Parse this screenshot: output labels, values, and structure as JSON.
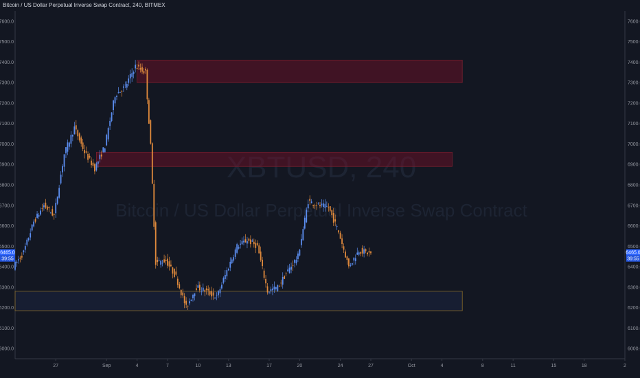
{
  "header": {
    "title": "Bitcoin / US Dollar Perpetual Inverse Swap Contract, 240, BITMEX"
  },
  "watermark": {
    "symbol": "XBTUSD, 240",
    "description": "Bitcoin / US Dollar Perpetual Inverse Swap Contract"
  },
  "chart_data": {
    "type": "candlestick",
    "symbol": "XBTUSD",
    "interval": "240",
    "exchange": "BITMEX",
    "y_ticks": [
      6000,
      6100,
      6200,
      6300,
      6400,
      6500,
      6600,
      6700,
      6800,
      6900,
      7000,
      7100,
      7200,
      7300,
      7400,
      7500,
      7600
    ],
    "y_tick_labels": [
      "6000.0",
      "6100.0",
      "6200.0",
      "6300.0",
      "6400.0",
      "6500.0",
      "6600.0",
      "6700.0",
      "6800.0",
      "6900.0",
      "7000.0",
      "7100.0",
      "7200.0",
      "7300.0",
      "7400.0",
      "7500.0",
      "7600.0"
    ],
    "ylim": [
      5950,
      7650
    ],
    "x_ticks": [
      {
        "label": "27",
        "date": "2018-08-27"
      },
      {
        "label": "Sep",
        "date": "2018-09-01"
      },
      {
        "label": "4",
        "date": "2018-09-04"
      },
      {
        "label": "7",
        "date": "2018-09-07"
      },
      {
        "label": "10",
        "date": "2018-09-10"
      },
      {
        "label": "13",
        "date": "2018-09-13"
      },
      {
        "label": "17",
        "date": "2018-09-17"
      },
      {
        "label": "20",
        "date": "2018-09-20"
      },
      {
        "label": "24",
        "date": "2018-09-24"
      },
      {
        "label": "27",
        "date": "2018-09-27"
      },
      {
        "label": "Oct",
        "date": "2018-10-01"
      },
      {
        "label": "4",
        "date": "2018-10-04"
      },
      {
        "label": "8",
        "date": "2018-10-08"
      },
      {
        "label": "11",
        "date": "2018-10-11"
      },
      {
        "label": "15",
        "date": "2018-10-15"
      },
      {
        "label": "18",
        "date": "2018-10-18"
      },
      {
        "label": "2",
        "date": "2018-10-22"
      }
    ],
    "xlim": [
      "2018-08-23",
      "2018-10-22"
    ],
    "last_price": "6465.0",
    "price_badge_top": "6465.0",
    "price_badge_bottom": "39:55",
    "zones": [
      {
        "name": "resistance-zone-upper",
        "start": "2018-09-04",
        "end": "2018-10-06",
        "low": 7300,
        "high": 7410,
        "kind": "resistance"
      },
      {
        "name": "resistance-zone-lower",
        "start": "2018-08-31",
        "end": "2018-10-05",
        "low": 6890,
        "high": 6960,
        "kind": "resistance"
      },
      {
        "name": "support-zone",
        "start": "2018-08-23",
        "end": "2018-10-06",
        "low": 6185,
        "high": 6280,
        "kind": "support"
      }
    ],
    "trend_path": [
      {
        "date": "2018-08-23",
        "price": 6400
      },
      {
        "date": "2018-08-24",
        "price": 6470
      },
      {
        "date": "2018-08-25",
        "price": 6620
      },
      {
        "date": "2018-08-26",
        "price": 6700
      },
      {
        "date": "2018-08-27",
        "price": 6650
      },
      {
        "date": "2018-08-28",
        "price": 6950
      },
      {
        "date": "2018-08-29",
        "price": 7080
      },
      {
        "date": "2018-08-30",
        "price": 6960
      },
      {
        "date": "2018-08-31",
        "price": 6880
      },
      {
        "date": "2018-09-01",
        "price": 6990
      },
      {
        "date": "2018-09-02",
        "price": 7240
      },
      {
        "date": "2018-09-03",
        "price": 7280
      },
      {
        "date": "2018-09-04",
        "price": 7380
      },
      {
        "date": "2018-09-05",
        "price": 7350
      },
      {
        "date": "2018-09-05T12:00",
        "price": 6990
      },
      {
        "date": "2018-09-06",
        "price": 6420
      },
      {
        "date": "2018-09-07",
        "price": 6430
      },
      {
        "date": "2018-09-08",
        "price": 6350
      },
      {
        "date": "2018-09-09",
        "price": 6200
      },
      {
        "date": "2018-09-10",
        "price": 6300
      },
      {
        "date": "2018-09-11",
        "price": 6280
      },
      {
        "date": "2018-09-12",
        "price": 6250
      },
      {
        "date": "2018-09-13",
        "price": 6380
      },
      {
        "date": "2018-09-14",
        "price": 6500
      },
      {
        "date": "2018-09-15",
        "price": 6530
      },
      {
        "date": "2018-09-16",
        "price": 6500
      },
      {
        "date": "2018-09-17",
        "price": 6280
      },
      {
        "date": "2018-09-18",
        "price": 6300
      },
      {
        "date": "2018-09-19",
        "price": 6380
      },
      {
        "date": "2018-09-20",
        "price": 6450
      },
      {
        "date": "2018-09-21",
        "price": 6720
      },
      {
        "date": "2018-09-22",
        "price": 6700
      },
      {
        "date": "2018-09-23",
        "price": 6690
      },
      {
        "date": "2018-09-24",
        "price": 6570
      },
      {
        "date": "2018-09-25",
        "price": 6400
      },
      {
        "date": "2018-09-26",
        "price": 6480
      },
      {
        "date": "2018-09-27",
        "price": 6465
      }
    ]
  }
}
